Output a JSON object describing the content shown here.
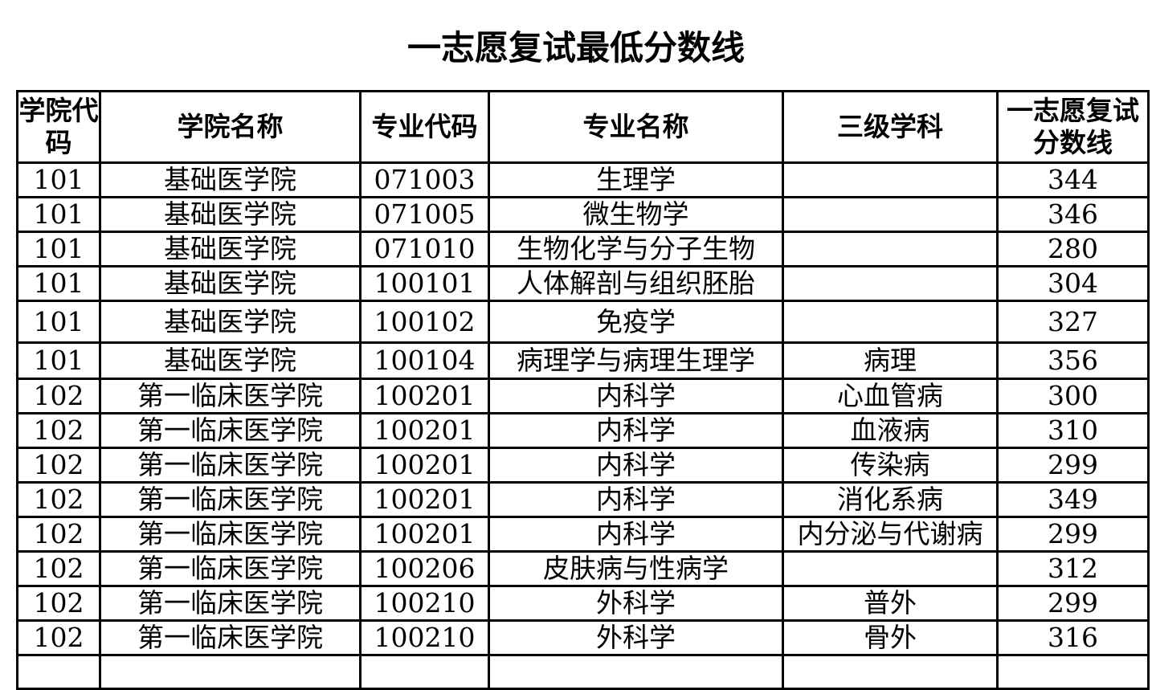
{
  "title": "一志愿复试最低分数线",
  "headers": [
    "学院代码",
    "学院名称",
    "专业代码",
    "专业名称",
    "三级学科",
    "一志愿复试分数线"
  ],
  "rows": [
    [
      "101",
      "基础医学院",
      "071003",
      "生理学",
      "",
      "344"
    ],
    [
      "101",
      "基础医学院",
      "071005",
      "微生物学",
      "",
      "346"
    ],
    [
      "101",
      "基础医学院",
      "071010",
      "生物化学与分子生物",
      "",
      "280"
    ],
    [
      "101",
      "基础医学院",
      "100101",
      "人体解剖与组织胚胎",
      "",
      "304"
    ],
    [
      "101",
      "基础医学院",
      "100102",
      "免疫学",
      "",
      "327"
    ],
    [
      "101",
      "基础医学院",
      "100104",
      "病理学与病理生理学",
      "病理",
      "356"
    ],
    [
      "102",
      "第一临床医学院",
      "100201",
      "内科学",
      "心血管病",
      "300"
    ],
    [
      "102",
      "第一临床医学院",
      "100201",
      "内科学",
      "血液病",
      "310"
    ],
    [
      "102",
      "第一临床医学院",
      "100201",
      "内科学",
      "传染病",
      "299"
    ],
    [
      "102",
      "第一临床医学院",
      "100201",
      "内科学",
      "消化系病",
      "349"
    ],
    [
      "102",
      "第一临床医学院",
      "100201",
      "内科学",
      "内分泌与代谢病",
      "299"
    ],
    [
      "102",
      "第一临床医学院",
      "100206",
      "皮肤病与性病学",
      "",
      "312"
    ],
    [
      "102",
      "第一临床医学院",
      "100210",
      "外科学",
      "普外",
      "299"
    ],
    [
      "102",
      "第一临床医学院",
      "100210",
      "外科学",
      "骨外",
      "316"
    ]
  ]
}
